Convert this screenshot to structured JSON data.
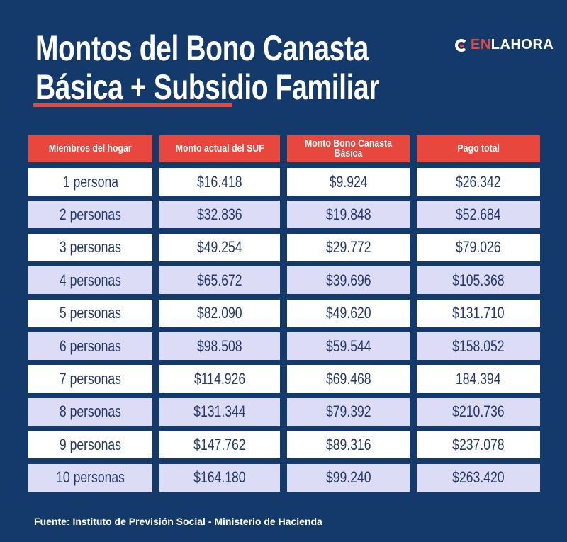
{
  "title": {
    "line1": "Montos del Bono Canasta",
    "line2": "Básica + Subsidio Familiar"
  },
  "logo": {
    "part1": "EN",
    "part2": "LAHORA"
  },
  "colors": {
    "background": "#133a6a",
    "accent": "#e8473e",
    "row_alt": "#dcdcf6",
    "text": "#23376b"
  },
  "table": {
    "headers": [
      "Miembros del hogar",
      "Monto actual del SUF",
      "Monto Bono Canasta Básica",
      "Pago total"
    ],
    "rows": [
      [
        "1 persona",
        "$16.418",
        "$9.924",
        "$26.342"
      ],
      [
        "2 personas",
        "$32.836",
        "$19.848",
        "$52.684"
      ],
      [
        "3 personas",
        "$49.254",
        "$29.772",
        "$79.026"
      ],
      [
        "4 personas",
        "$65.672",
        "$39.696",
        "$105.368"
      ],
      [
        "5 personas",
        "$82.090",
        "$49.620",
        "$131.710"
      ],
      [
        "6 personas",
        "$98.508",
        "$59.544",
        "$158.052"
      ],
      [
        "7 personas",
        "$114.926",
        "$69.468",
        "184.394"
      ],
      [
        "8 personas",
        "$131.344",
        "$79.392",
        "$210.736"
      ],
      [
        "9 personas",
        "$147.762",
        "$89.316",
        "$237.078"
      ],
      [
        "10 personas",
        "$164.180",
        "$99.240",
        "$263.420"
      ]
    ]
  },
  "source": "Fuente: Instituto de Previsión Social - Ministerio de Hacienda"
}
